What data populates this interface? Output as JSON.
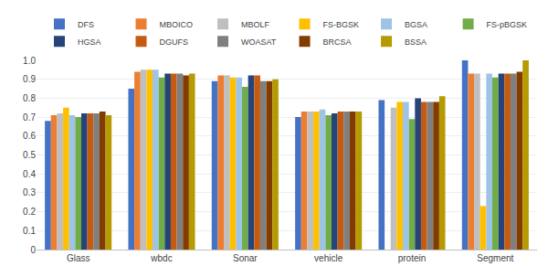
{
  "chart_data": {
    "type": "bar",
    "categories": [
      "Glass",
      "wbdc",
      "Sonar",
      "vehicle",
      "protein",
      "Segment"
    ],
    "series": [
      {
        "name": "DFS",
        "color": "#4472C4",
        "values": [
          0.68,
          0.85,
          0.89,
          0.7,
          0.79,
          1.0
        ]
      },
      {
        "name": "MBOICO",
        "color": "#ED7D31",
        "values": [
          0.71,
          0.94,
          0.92,
          0.73,
          0.0,
          0.93
        ]
      },
      {
        "name": "MBOLF",
        "color": "#BFBFBF",
        "values": [
          0.72,
          0.95,
          0.92,
          0.73,
          0.75,
          0.93
        ]
      },
      {
        "name": "FS-BGSK",
        "color": "#FFC000",
        "values": [
          0.75,
          0.95,
          0.91,
          0.73,
          0.78,
          0.23
        ]
      },
      {
        "name": "BGSA",
        "color": "#9DC3E6",
        "values": [
          0.71,
          0.95,
          0.91,
          0.74,
          0.78,
          0.93
        ]
      },
      {
        "name": "FS-pBGSK",
        "color": "#70AD47",
        "values": [
          0.7,
          0.91,
          0.86,
          0.71,
          0.69,
          0.91
        ]
      },
      {
        "name": "HGSA",
        "color": "#264478",
        "values": [
          0.72,
          0.93,
          0.92,
          0.72,
          0.8,
          0.93
        ]
      },
      {
        "name": "DGUFS",
        "color": "#C55A11",
        "values": [
          0.72,
          0.93,
          0.92,
          0.73,
          0.78,
          0.93
        ]
      },
      {
        "name": "WOASAT",
        "color": "#7F7F7F",
        "values": [
          0.72,
          0.93,
          0.89,
          0.73,
          0.78,
          0.93
        ]
      },
      {
        "name": "BRCSA",
        "color": "#833C00",
        "values": [
          0.73,
          0.92,
          0.89,
          0.73,
          0.78,
          0.94
        ]
      },
      {
        "name": "BSSA",
        "color": "#B59A00",
        "values": [
          0.71,
          0.93,
          0.9,
          0.73,
          0.81,
          1.0
        ]
      }
    ],
    "ylim": [
      0,
      1.0
    ],
    "yticks": [
      0,
      0.1,
      0.2,
      0.3,
      0.4,
      0.5,
      0.6,
      0.7,
      0.8,
      0.9,
      {
        "value": 1.0,
        "label": "1.0"
      }
    ],
    "grid": true,
    "legend": "top"
  }
}
